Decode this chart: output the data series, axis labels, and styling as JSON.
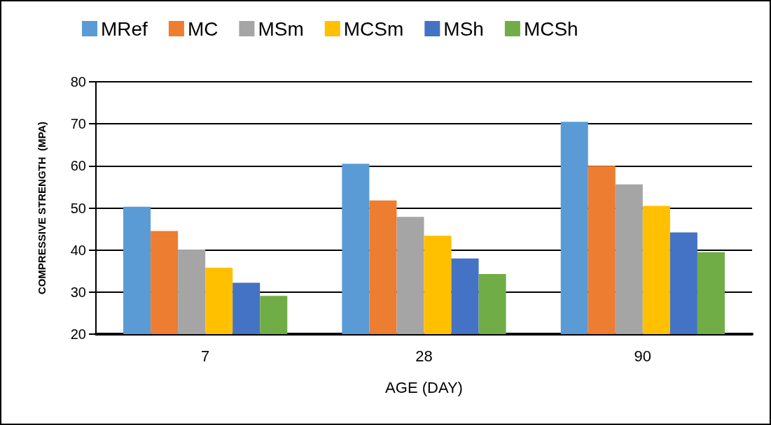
{
  "chart_data": {
    "type": "bar",
    "xlabel": "AGE (DAY)",
    "ylabel": "COMPRESSIVE STRENGTH  (MPA)",
    "categories": [
      "7",
      "28",
      "90"
    ],
    "series": [
      {
        "name": "MRef",
        "color": "#5b9bd5",
        "values": [
          50.3,
          60.5,
          70.5
        ]
      },
      {
        "name": "MC",
        "color": "#ed7d31",
        "values": [
          44.5,
          51.8,
          60.0
        ]
      },
      {
        "name": "MSm",
        "color": "#a5a5a5",
        "values": [
          40.1,
          47.9,
          55.6
        ]
      },
      {
        "name": "MCSm",
        "color": "#ffc000",
        "values": [
          35.8,
          43.4,
          50.5
        ]
      },
      {
        "name": "MSh",
        "color": "#4472c4",
        "values": [
          32.2,
          38.0,
          44.2
        ]
      },
      {
        "name": "MCSh",
        "color": "#70ad47",
        "values": [
          29.1,
          34.3,
          39.5
        ]
      }
    ],
    "ylim": [
      20,
      80
    ],
    "yticks": [
      20,
      30,
      40,
      50,
      60,
      70,
      80
    ],
    "grid": "y",
    "legend": "top left"
  }
}
